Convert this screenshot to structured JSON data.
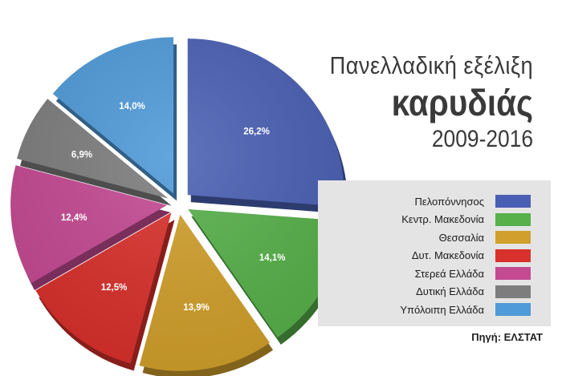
{
  "title": {
    "line1": "Πανελλαδική εξέλιξη",
    "line2": "καρυδιάς",
    "line3": "2009-2016"
  },
  "source": "Πηγή: ΕΛΣΤΑΤ",
  "chart_data": {
    "type": "pie",
    "title": "Πανελλαδική εξέλιξη καρυδιάς 2009-2016",
    "categories": [
      "Πελοπόννησος",
      "Κεντρ. Μακεδονία",
      "Θεσσαλία",
      "Δυτ. Μακεδονία",
      "Στερεά Ελλάδα",
      "Δυτική Ελλάδα",
      "Υπόλοιπη Ελλάδα"
    ],
    "values": [
      26.2,
      14.1,
      13.9,
      12.5,
      12.4,
      6.9,
      14.0
    ],
    "value_labels": [
      "26,2%",
      "14,1%",
      "13,9%",
      "12,5%",
      "12,4%",
      "6,9%",
      "14,0%"
    ],
    "colors": [
      "#4a5fb3",
      "#57b04a",
      "#d1a02c",
      "#d9312c",
      "#c44a92",
      "#7d7d7d",
      "#4f9ad8"
    ],
    "legend_position": "right"
  }
}
